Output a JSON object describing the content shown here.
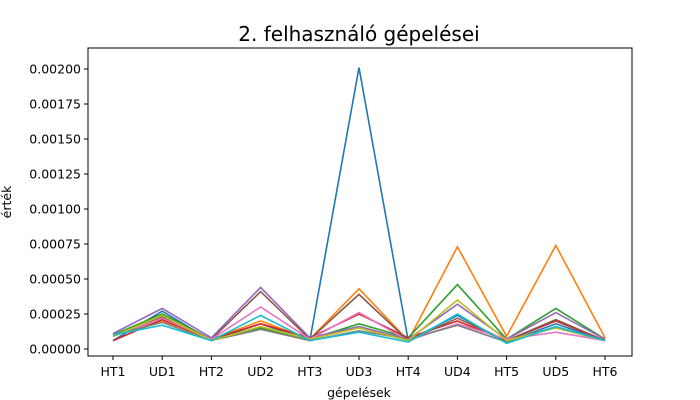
{
  "chart_data": {
    "type": "line",
    "title": "2. felhasználó gépelései",
    "xlabel": "gépelések",
    "ylabel": "érték",
    "categories": [
      "HT1",
      "UD1",
      "HT2",
      "UD2",
      "HT3",
      "UD3",
      "HT4",
      "UD4",
      "HT5",
      "UD5",
      "HT6"
    ],
    "yticks": [
      "0.00000",
      "0.00025",
      "0.00050",
      "0.00075",
      "0.00100",
      "0.00125",
      "0.00150",
      "0.00175",
      "0.00200"
    ],
    "ylim": [
      -5e-05,
      0.00215
    ],
    "grid": false,
    "series": [
      {
        "color": "#1f77b4",
        "values": [
          6e-05,
          0.00027,
          6e-05,
          0.00018,
          6e-05,
          0.00201,
          6e-05,
          0.00024,
          5e-05,
          0.00018,
          6e-05
        ]
      },
      {
        "color": "#ff7f0e",
        "values": [
          0.0001,
          0.0002,
          7e-05,
          0.0002,
          7e-05,
          0.00043,
          6e-05,
          0.00073,
          9e-05,
          0.00074,
          8e-05
        ]
      },
      {
        "color": "#2ca02c",
        "values": [
          0.0001,
          0.00025,
          7e-05,
          0.00015,
          7e-05,
          0.00018,
          8e-05,
          0.00046,
          7e-05,
          0.00029,
          7e-05
        ]
      },
      {
        "color": "#d62728",
        "values": [
          6e-05,
          0.00021,
          7e-05,
          0.00018,
          8e-05,
          0.00025,
          8e-05,
          0.0002,
          6e-05,
          0.0002,
          6e-05
        ]
      },
      {
        "color": "#9467bd",
        "values": [
          0.00011,
          0.00029,
          8e-05,
          0.00044,
          8e-05,
          0.00016,
          7e-05,
          0.00032,
          7e-05,
          0.00026,
          7e-05
        ]
      },
      {
        "color": "#8c564b",
        "values": [
          9e-05,
          0.00023,
          7e-05,
          0.00041,
          7e-05,
          0.00039,
          6e-05,
          0.00022,
          6e-05,
          0.00021,
          6e-05
        ]
      },
      {
        "color": "#e377c2",
        "values": [
          9e-05,
          0.00022,
          7e-05,
          0.0003,
          7e-05,
          0.00026,
          6e-05,
          0.00018,
          7e-05,
          0.00012,
          6e-05
        ]
      },
      {
        "color": "#7f7f7f",
        "values": [
          0.0001,
          0.00019,
          6e-05,
          0.00014,
          6e-05,
          0.00013,
          7e-05,
          0.00017,
          5e-05,
          0.00016,
          6e-05
        ]
      },
      {
        "color": "#bcbd22",
        "values": [
          9e-05,
          0.00024,
          6e-05,
          0.00016,
          7e-05,
          0.00015,
          6e-05,
          0.00035,
          6e-05,
          0.00015,
          6e-05
        ]
      },
      {
        "color": "#17becf",
        "values": [
          0.0001,
          0.00017,
          6e-05,
          0.00024,
          6e-05,
          0.00012,
          5e-05,
          0.00025,
          4e-05,
          0.00016,
          6e-05
        ]
      }
    ]
  }
}
